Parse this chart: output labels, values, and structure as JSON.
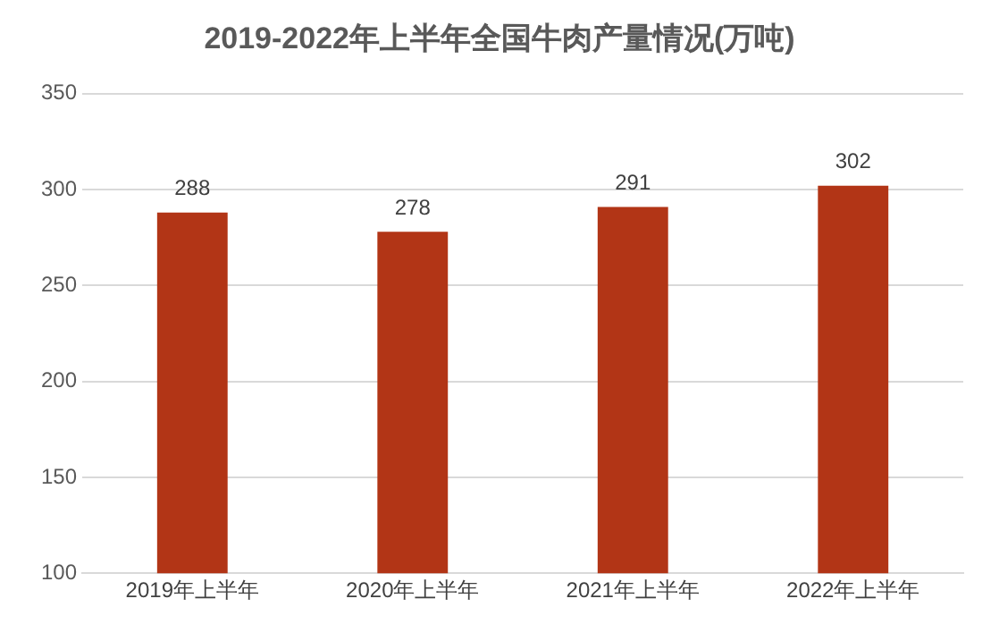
{
  "chart_data": {
    "type": "bar",
    "title": "2019-2022年上半年全国牛肉产量情况(万吨)",
    "categories": [
      "2019年上半年",
      "2020年上半年",
      "2021年上半年",
      "2022年上半年"
    ],
    "values": [
      288,
      278,
      291,
      302
    ],
    "color": "#b23516",
    "ylim": [
      100,
      350
    ],
    "yticks": [
      100,
      150,
      200,
      250,
      300,
      350
    ],
    "grid": "y",
    "data_labels": true
  }
}
